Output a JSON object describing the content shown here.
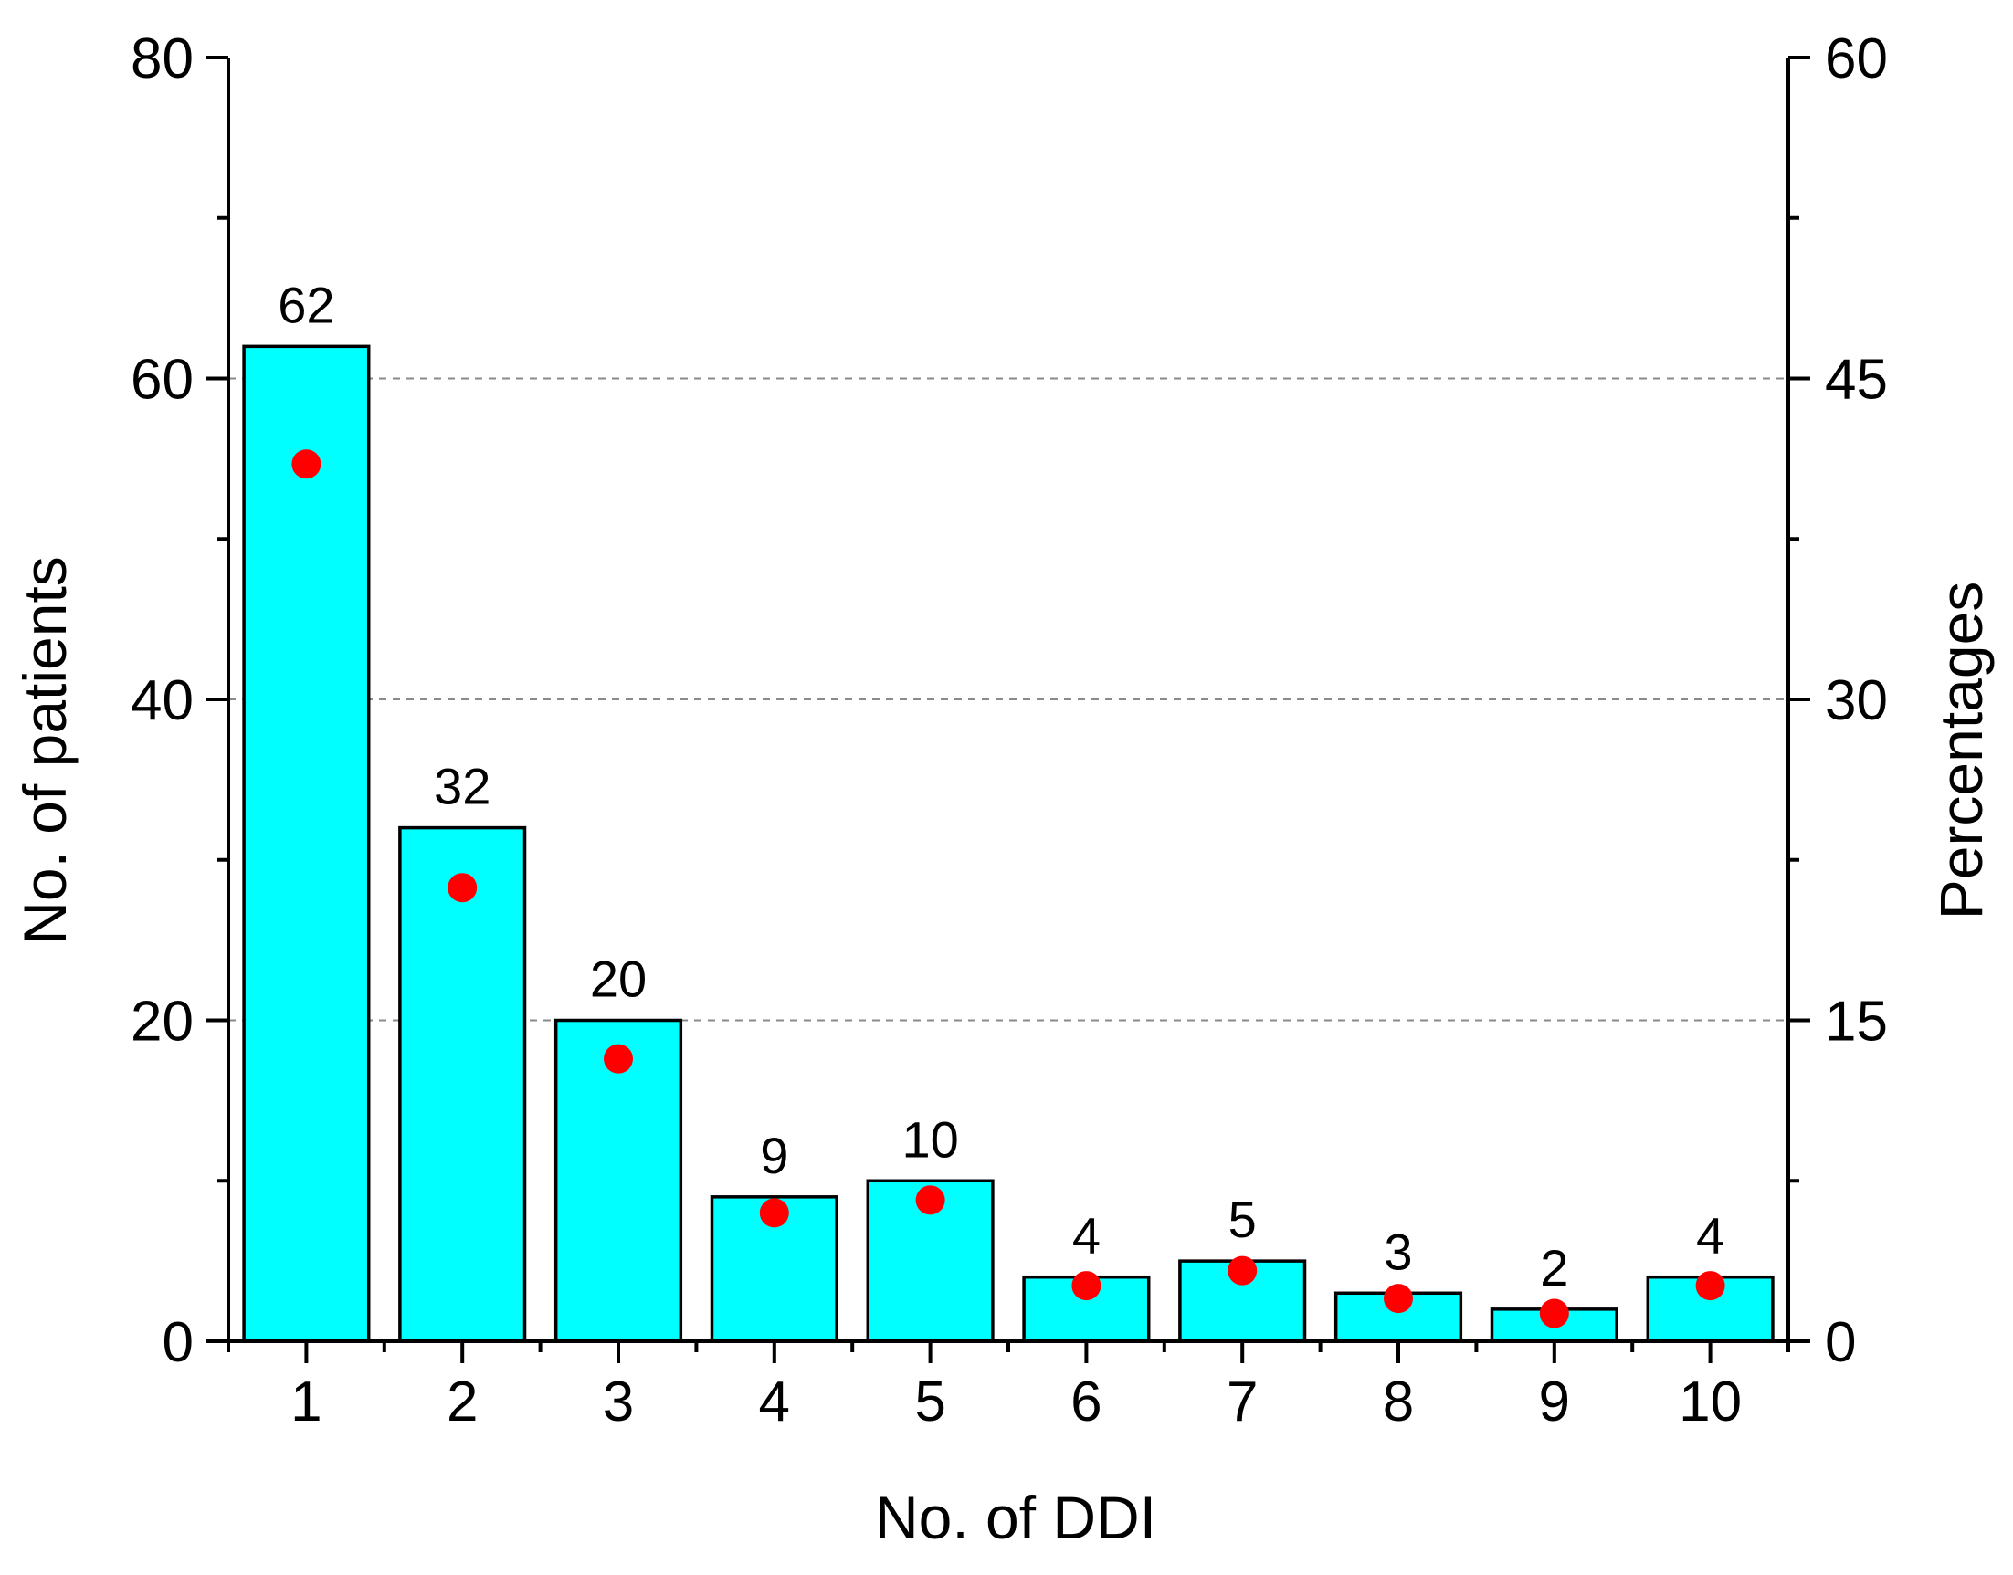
{
  "chart_data": {
    "type": "bar",
    "xlabel": "No. of DDI",
    "ylabel": "No. of patients",
    "y2label": "Percentages",
    "categories": [
      "1",
      "2",
      "3",
      "4",
      "5",
      "6",
      "7",
      "8",
      "9",
      "10"
    ],
    "series": [
      {
        "type": "bar",
        "axis": "left",
        "values": [
          62,
          32,
          20,
          9,
          10,
          4,
          5,
          3,
          2,
          4
        ],
        "color": "#00FFFF"
      },
      {
        "type": "scatter",
        "axis": "right",
        "values": [
          41.0,
          21.2,
          13.2,
          6.0,
          6.6,
          2.6,
          3.3,
          2.0,
          1.3,
          2.6
        ],
        "color": "#FF0000"
      }
    ],
    "data_labels": [
      "62",
      "32",
      "20",
      "9",
      "10",
      "4",
      "5",
      "3",
      "2",
      "4"
    ],
    "ylim": [
      0,
      80
    ],
    "y2lim": [
      0,
      60
    ],
    "yticks": [
      "0",
      "20",
      "40",
      "60",
      "80"
    ],
    "y2ticks": [
      "0",
      "15",
      "30",
      "45",
      "60"
    ],
    "grid": "horizontal dashed at major ticks"
  }
}
